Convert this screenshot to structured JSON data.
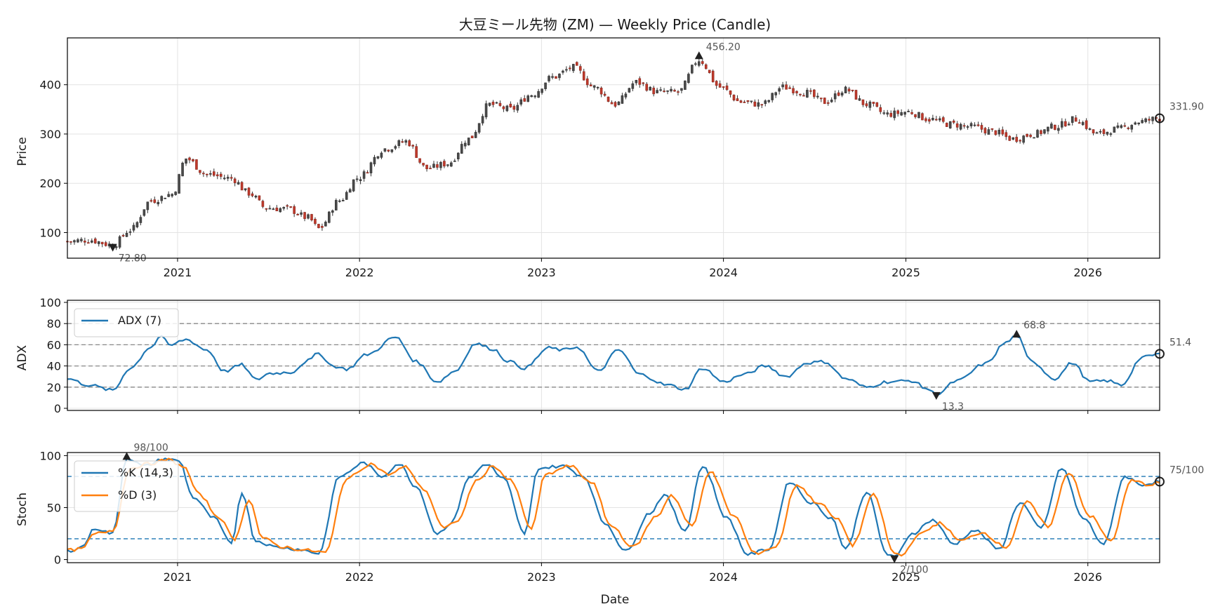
{
  "colors": {
    "up": "#2f8f83",
    "down": "#c0392b",
    "wick": "#333333",
    "adx": "#1f77b4",
    "k": "#1f77b4",
    "d": "#ff7f0e",
    "ref_line": "#888888",
    "stoch_ref": "#1f77b4",
    "marker": "#222222"
  },
  "chart_data": [
    {
      "type": "candlestick",
      "title": "大豆ミール先物 (ZM) — Weekly Price (Candle)",
      "xlabel": "",
      "ylabel": "Price",
      "x_ticks": [
        "2021",
        "2022",
        "2023",
        "2024",
        "2025",
        "2026"
      ],
      "y_ticks": [
        100,
        200,
        300,
        400
      ],
      "xlim": [
        "2020-05-25",
        "2026-05-25"
      ],
      "ylim": [
        48,
        495
      ],
      "grid": true,
      "frequency": "weekly",
      "close_anchors": [
        [
          "2020-05-25",
          82
        ],
        [
          "2020-07-06",
          85
        ],
        [
          "2020-08-24",
          75
        ],
        [
          "2020-09-28",
          105
        ],
        [
          "2020-11-09",
          165
        ],
        [
          "2020-12-21",
          178
        ],
        [
          "2021-01-18",
          250
        ],
        [
          "2021-03-01",
          218
        ],
        [
          "2021-04-19",
          210
        ],
        [
          "2021-05-24",
          180
        ],
        [
          "2021-06-28",
          150
        ],
        [
          "2021-08-09",
          148
        ],
        [
          "2021-09-20",
          130
        ],
        [
          "2021-10-11",
          108
        ],
        [
          "2021-11-22",
          165
        ],
        [
          "2021-12-27",
          210
        ],
        [
          "2022-02-21",
          270
        ],
        [
          "2022-04-04",
          285
        ],
        [
          "2022-05-16",
          230
        ],
        [
          "2022-06-27",
          240
        ],
        [
          "2022-08-08",
          290
        ],
        [
          "2022-09-19",
          360
        ],
        [
          "2022-10-31",
          350
        ],
        [
          "2022-12-12",
          380
        ],
        [
          "2023-01-23",
          415
        ],
        [
          "2023-03-06",
          435
        ],
        [
          "2023-04-17",
          395
        ],
        [
          "2023-05-29",
          360
        ],
        [
          "2023-07-10",
          405
        ],
        [
          "2023-08-21",
          385
        ],
        [
          "2023-10-02",
          385
        ],
        [
          "2023-11-13",
          450
        ],
        [
          "2023-12-25",
          395
        ],
        [
          "2024-02-05",
          365
        ],
        [
          "2024-03-18",
          360
        ],
        [
          "2024-04-29",
          395
        ],
        [
          "2024-06-10",
          385
        ],
        [
          "2024-07-22",
          365
        ],
        [
          "2024-09-02",
          390
        ],
        [
          "2024-10-14",
          360
        ],
        [
          "2024-11-25",
          340
        ],
        [
          "2025-01-06",
          345
        ],
        [
          "2025-02-17",
          330
        ],
        [
          "2025-03-31",
          320
        ],
        [
          "2025-05-12",
          315
        ],
        [
          "2025-06-23",
          305
        ],
        [
          "2025-08-04",
          290
        ],
        [
          "2025-09-15",
          300
        ],
        [
          "2025-10-27",
          315
        ],
        [
          "2025-12-08",
          330
        ],
        [
          "2026-01-19",
          300
        ],
        [
          "2026-03-02",
          310
        ],
        [
          "2026-04-13",
          325
        ],
        [
          "2026-05-25",
          332
        ]
      ],
      "annotations": [
        {
          "label": "72.80",
          "x": "2020-08-24",
          "y": 72.8,
          "marker": "down"
        },
        {
          "label": "456.20",
          "x": "2023-11-13",
          "y": 456.2,
          "marker": "up"
        },
        {
          "label": "331.90",
          "x": "2026-05-25",
          "y": 331.9,
          "marker": "circle"
        }
      ]
    },
    {
      "type": "line",
      "ylabel": "ADX",
      "y_ticks": [
        0,
        20,
        40,
        60,
        80,
        100
      ],
      "ylim": [
        -2,
        102
      ],
      "reference_lines": [
        20,
        40,
        60,
        80
      ],
      "series": [
        {
          "name": "ADX (7)",
          "anchors": [
            [
              "2020-05-25",
              28
            ],
            [
              "2020-07-06",
              22
            ],
            [
              "2020-08-24",
              17
            ],
            [
              "2020-09-28",
              38
            ],
            [
              "2020-11-09",
              58
            ],
            [
              "2020-11-30",
              69
            ],
            [
              "2020-12-14",
              59
            ],
            [
              "2021-01-18",
              65
            ],
            [
              "2021-03-01",
              55
            ],
            [
              "2021-04-05",
              35
            ],
            [
              "2021-05-10",
              41
            ],
            [
              "2021-06-07",
              27
            ],
            [
              "2021-07-05",
              33
            ],
            [
              "2021-08-16",
              34
            ],
            [
              "2021-09-20",
              45
            ],
            [
              "2021-10-11",
              52
            ],
            [
              "2021-11-08",
              40
            ],
            [
              "2021-12-06",
              37
            ],
            [
              "2022-01-17",
              51
            ],
            [
              "2022-03-14",
              67
            ],
            [
              "2022-04-25",
              44
            ],
            [
              "2022-06-06",
              25
            ],
            [
              "2022-07-11",
              35
            ],
            [
              "2022-08-22",
              61
            ],
            [
              "2022-09-26",
              56
            ],
            [
              "2022-10-24",
              45
            ],
            [
              "2022-11-28",
              38
            ],
            [
              "2023-01-16",
              57
            ],
            [
              "2023-02-13",
              55
            ],
            [
              "2023-03-13",
              58
            ],
            [
              "2023-04-24",
              35
            ],
            [
              "2023-06-05",
              55
            ],
            [
              "2023-07-17",
              32
            ],
            [
              "2023-09-11",
              22
            ],
            [
              "2023-10-16",
              18
            ],
            [
              "2023-11-20",
              38
            ],
            [
              "2024-01-01",
              25
            ],
            [
              "2024-02-12",
              32
            ],
            [
              "2024-03-25",
              40
            ],
            [
              "2024-05-06",
              30
            ],
            [
              "2024-06-17",
              43
            ],
            [
              "2024-07-22",
              44
            ],
            [
              "2024-09-02",
              28
            ],
            [
              "2024-10-14",
              20
            ],
            [
              "2024-11-25",
              25
            ],
            [
              "2025-01-13",
              26
            ],
            [
              "2025-02-10",
              19
            ],
            [
              "2025-03-03",
              13.3
            ],
            [
              "2025-04-14",
              26
            ],
            [
              "2025-06-09",
              42
            ],
            [
              "2025-07-21",
              62
            ],
            [
              "2025-08-11",
              68.8
            ],
            [
              "2025-09-08",
              45
            ],
            [
              "2025-10-27",
              28
            ],
            [
              "2025-12-01",
              43
            ],
            [
              "2026-01-05",
              25
            ],
            [
              "2026-02-09",
              26
            ],
            [
              "2026-03-09",
              22
            ],
            [
              "2026-04-20",
              48
            ],
            [
              "2026-05-25",
              51.4
            ]
          ]
        }
      ],
      "annotations": [
        {
          "label": "13.3",
          "x": "2025-03-03",
          "y": 13.3,
          "marker": "down"
        },
        {
          "label": "68.8",
          "x": "2025-08-11",
          "y": 68.8,
          "marker": "up"
        },
        {
          "label": "51.4",
          "x": "2026-05-25",
          "y": 51.4,
          "marker": "circle"
        }
      ]
    },
    {
      "type": "line",
      "xlabel": "Date",
      "ylabel": "Stoch",
      "y_ticks": [
        0,
        50,
        100
      ],
      "ylim": [
        -3,
        103
      ],
      "reference_lines": [
        20,
        80
      ],
      "series": [
        {
          "name": "%K (14,3)",
          "anchors": [
            [
              "2020-05-25",
              8
            ],
            [
              "2020-06-22",
              12
            ],
            [
              "2020-07-20",
              30
            ],
            [
              "2020-08-24",
              25
            ],
            [
              "2020-09-21",
              98
            ],
            [
              "2020-10-26",
              90
            ],
            [
              "2020-12-07",
              97
            ],
            [
              "2021-01-04",
              95
            ],
            [
              "2021-02-01",
              60
            ],
            [
              "2021-03-15",
              40
            ],
            [
              "2021-04-19",
              15
            ],
            [
              "2021-05-10",
              65
            ],
            [
              "2021-06-07",
              18
            ],
            [
              "2021-07-19",
              12
            ],
            [
              "2021-08-30",
              10
            ],
            [
              "2021-10-11",
              6
            ],
            [
              "2021-11-22",
              80
            ],
            [
              "2022-01-10",
              93
            ],
            [
              "2022-02-14",
              80
            ],
            [
              "2022-03-21",
              92
            ],
            [
              "2022-04-25",
              70
            ],
            [
              "2022-06-06",
              25
            ],
            [
              "2022-07-04",
              35
            ],
            [
              "2022-08-08",
              78
            ],
            [
              "2022-09-12",
              92
            ],
            [
              "2022-10-17",
              78
            ],
            [
              "2022-11-28",
              25
            ],
            [
              "2022-12-26",
              88
            ],
            [
              "2023-02-13",
              90
            ],
            [
              "2023-03-27",
              80
            ],
            [
              "2023-05-08",
              35
            ],
            [
              "2023-06-19",
              8
            ],
            [
              "2023-08-07",
              45
            ],
            [
              "2023-09-04",
              62
            ],
            [
              "2023-10-16",
              28
            ],
            [
              "2023-11-20",
              90
            ],
            [
              "2024-01-08",
              40
            ],
            [
              "2024-02-19",
              5
            ],
            [
              "2024-04-01",
              10
            ],
            [
              "2024-05-13",
              75
            ],
            [
              "2024-06-24",
              55
            ],
            [
              "2024-08-05",
              40
            ],
            [
              "2024-09-02",
              10
            ],
            [
              "2024-10-14",
              65
            ],
            [
              "2024-11-25",
              5
            ],
            [
              "2024-12-09",
              2
            ],
            [
              "2025-01-13",
              25
            ],
            [
              "2025-02-24",
              38
            ],
            [
              "2025-04-07",
              15
            ],
            [
              "2025-05-19",
              28
            ],
            [
              "2025-07-07",
              10
            ],
            [
              "2025-08-18",
              55
            ],
            [
              "2025-09-29",
              30
            ],
            [
              "2025-11-10",
              88
            ],
            [
              "2025-12-22",
              40
            ],
            [
              "2026-02-02",
              15
            ],
            [
              "2026-03-16",
              80
            ],
            [
              "2026-04-20",
              72
            ],
            [
              "2026-05-25",
              75
            ]
          ]
        },
        {
          "name": "%D (3)",
          "anchors": [
            [
              "2020-05-25",
              9
            ],
            [
              "2020-06-22",
              10
            ],
            [
              "2020-07-20",
              25
            ],
            [
              "2020-08-24",
              28
            ],
            [
              "2020-09-28",
              88
            ],
            [
              "2020-11-02",
              92
            ],
            [
              "2020-12-14",
              96
            ],
            [
              "2021-01-11",
              90
            ],
            [
              "2021-02-15",
              62
            ],
            [
              "2021-03-22",
              42
            ],
            [
              "2021-04-26",
              20
            ],
            [
              "2021-05-24",
              58
            ],
            [
              "2021-06-21",
              20
            ],
            [
              "2021-08-02",
              12
            ],
            [
              "2021-09-13",
              9
            ],
            [
              "2021-10-25",
              7
            ],
            [
              "2021-12-06",
              78
            ],
            [
              "2022-01-24",
              92
            ],
            [
              "2022-02-28",
              82
            ],
            [
              "2022-04-04",
              89
            ],
            [
              "2022-05-09",
              68
            ],
            [
              "2022-06-20",
              30
            ],
            [
              "2022-07-18",
              38
            ],
            [
              "2022-08-22",
              75
            ],
            [
              "2022-09-26",
              90
            ],
            [
              "2022-10-31",
              76
            ],
            [
              "2022-12-12",
              30
            ],
            [
              "2023-01-09",
              82
            ],
            [
              "2023-02-27",
              90
            ],
            [
              "2023-04-10",
              75
            ],
            [
              "2023-05-22",
              32
            ],
            [
              "2023-07-03",
              12
            ],
            [
              "2023-08-21",
              42
            ],
            [
              "2023-09-18",
              62
            ],
            [
              "2023-10-30",
              32
            ],
            [
              "2023-12-04",
              85
            ],
            [
              "2024-01-22",
              42
            ],
            [
              "2024-03-04",
              6
            ],
            [
              "2024-04-15",
              12
            ],
            [
              "2024-05-27",
              72
            ],
            [
              "2024-07-08",
              55
            ],
            [
              "2024-08-19",
              38
            ],
            [
              "2024-09-16",
              14
            ],
            [
              "2024-10-28",
              62
            ],
            [
              "2024-12-09",
              6
            ],
            [
              "2024-12-23",
              4
            ],
            [
              "2025-01-27",
              24
            ],
            [
              "2025-03-10",
              35
            ],
            [
              "2025-04-21",
              18
            ],
            [
              "2025-06-02",
              26
            ],
            [
              "2025-07-21",
              12
            ],
            [
              "2025-09-01",
              55
            ],
            [
              "2025-10-13",
              32
            ],
            [
              "2025-11-24",
              84
            ],
            [
              "2026-01-05",
              42
            ],
            [
              "2026-02-16",
              18
            ],
            [
              "2026-03-30",
              76
            ],
            [
              "2026-05-04",
              72
            ],
            [
              "2026-05-25",
              74
            ]
          ]
        }
      ],
      "annotations": [
        {
          "label": "98/100",
          "x": "2020-09-21",
          "y": 98,
          "marker": "up"
        },
        {
          "label": "2/100",
          "x": "2024-12-09",
          "y": 2,
          "marker": "down"
        },
        {
          "label": "75/100",
          "x": "2026-05-25",
          "y": 75,
          "marker": "circle"
        }
      ]
    }
  ]
}
